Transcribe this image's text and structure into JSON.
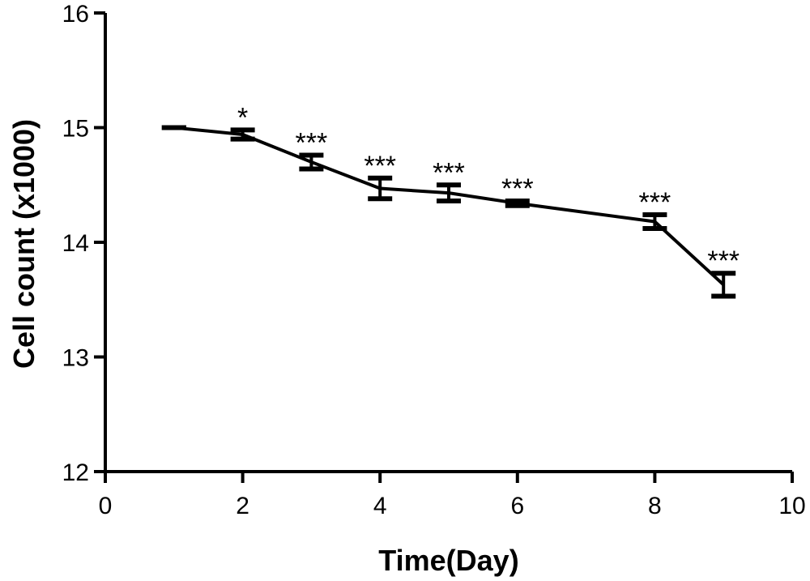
{
  "chart_data": {
    "type": "line",
    "title": "",
    "xlabel": "Time(Day)",
    "ylabel": "Cell count (x1000)",
    "xlim": [
      0,
      10
    ],
    "ylim": [
      12,
      16
    ],
    "x_ticks": [
      0,
      2,
      4,
      6,
      8,
      10
    ],
    "y_ticks": [
      12,
      13,
      14,
      15,
      16
    ],
    "grid": false,
    "series": [
      {
        "points": [
          {
            "x": 1,
            "y": 15.0,
            "err": 0.0,
            "sig": ""
          },
          {
            "x": 2,
            "y": 14.94,
            "err": 0.04,
            "sig": "*"
          },
          {
            "x": 3,
            "y": 14.7,
            "err": 0.06,
            "sig": "***"
          },
          {
            "x": 4,
            "y": 14.47,
            "err": 0.09,
            "sig": "***"
          },
          {
            "x": 5,
            "y": 14.43,
            "err": 0.07,
            "sig": "***"
          },
          {
            "x": 6,
            "y": 14.34,
            "err": 0.02,
            "sig": "***"
          },
          {
            "x": 8,
            "y": 14.18,
            "err": 0.06,
            "sig": "***"
          },
          {
            "x": 9,
            "y": 13.63,
            "err": 0.1,
            "sig": "***"
          }
        ]
      }
    ]
  }
}
